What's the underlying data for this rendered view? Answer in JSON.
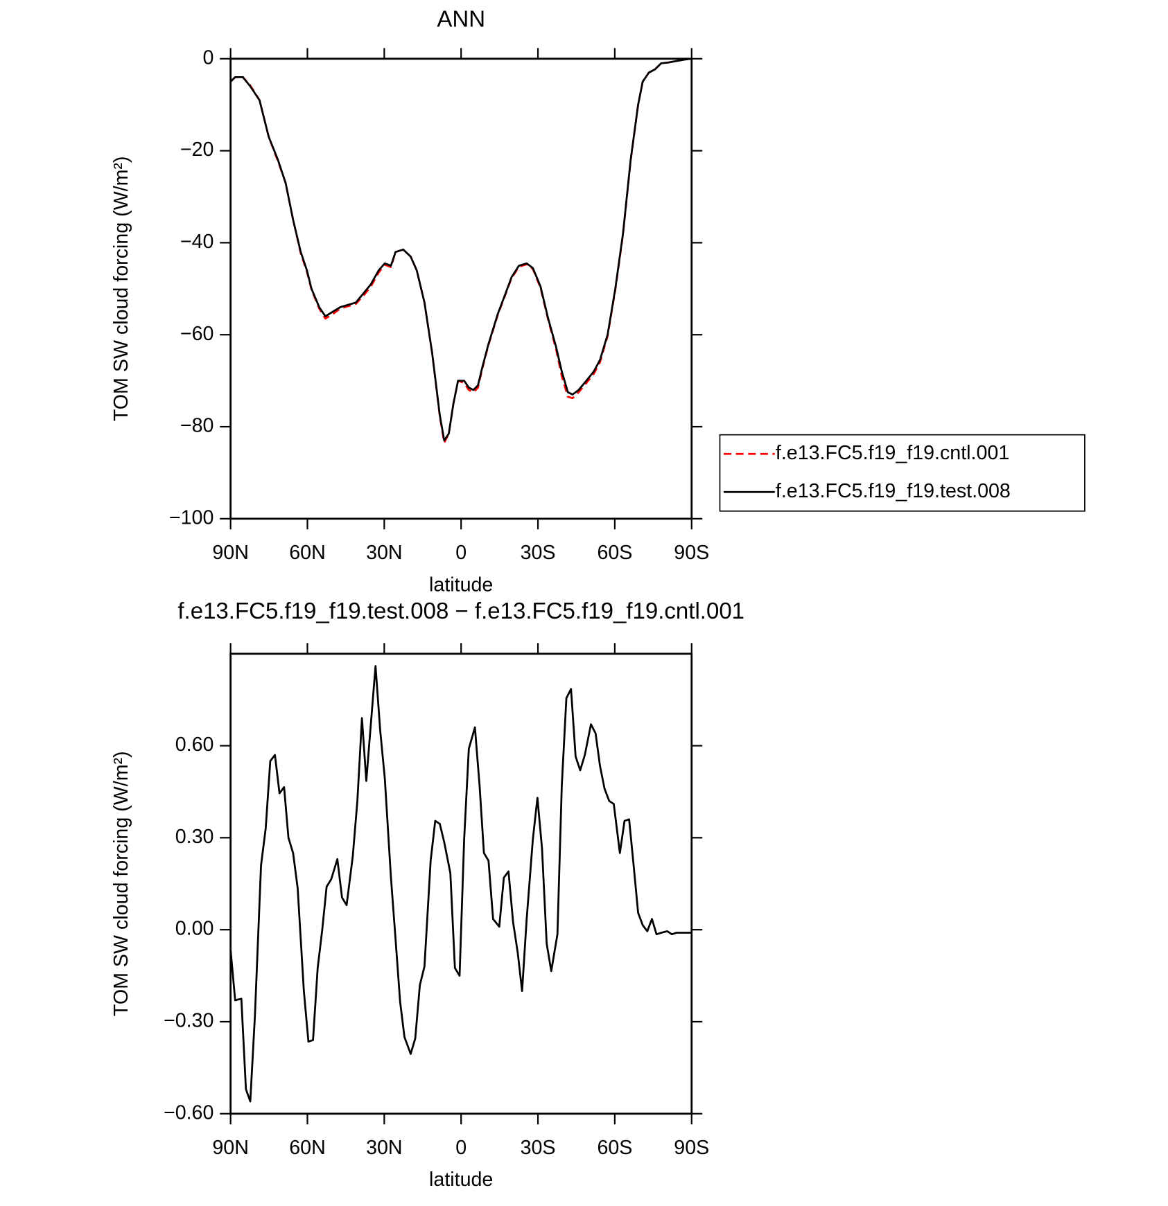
{
  "chart_data": [
    {
      "type": "line",
      "title": "ANN",
      "xlabel": "latitude",
      "ylabel": "TOM SW cloud forcing (W/m²)",
      "xlim": [
        90,
        -90
      ],
      "xticks": [
        {
          "value": 90,
          "label": "90N"
        },
        {
          "value": 60,
          "label": "60N"
        },
        {
          "value": 30,
          "label": "30N"
        },
        0,
        {
          "value": -30,
          "label": "30S"
        },
        {
          "value": -60,
          "label": "60S"
        },
        {
          "value": -90,
          "label": "90S"
        }
      ],
      "ylim": [
        -100,
        0
      ],
      "yticks": [
        0,
        {
          "value": -20,
          "label": "−20"
        },
        {
          "value": -40,
          "label": "−40"
        },
        {
          "value": -60,
          "label": "−60"
        },
        {
          "value": -80,
          "label": "−80"
        },
        {
          "value": -100,
          "label": "−100"
        }
      ],
      "legend": "right",
      "x": [
        90,
        88.2,
        85.2,
        82.3,
        78.7,
        75.1,
        71.5,
        68.5,
        65.6,
        62.6,
        60.2,
        58.4,
        55.4,
        53.0,
        50.1,
        47.1,
        44.1,
        41.1,
        38.1,
        35.2,
        32.2,
        29.8,
        27.4,
        25.6,
        22.6,
        19.7,
        17.3,
        14.3,
        11.3,
        8.3,
        6.6,
        4.8,
        3.0,
        1.2,
        -1.2,
        -3.0,
        -4.8,
        -6.6,
        -8.3,
        -10.7,
        -14.3,
        -16.7,
        -19.7,
        -22.6,
        -25.6,
        -28.0,
        -31.0,
        -34.0,
        -37.0,
        -39.3,
        -41.7,
        -43.5,
        -45.9,
        -48.9,
        -51.8,
        -54.2,
        -57.2,
        -60.2,
        -63.2,
        -66.2,
        -69.1,
        -70.9,
        -73.3,
        -75.7,
        -78.1,
        -81.1,
        -84.0,
        -87.0,
        -90.0
      ],
      "series": [
        {
          "name": "f.e13.FC5.f19_f19.cntl.001",
          "color": "#ff0000",
          "linestyle": "dashed",
          "values": [
            -5,
            -4,
            -4,
            -5.8,
            -9,
            -17,
            -22.3,
            -27,
            -35,
            -42.3,
            -46.3,
            -50.2,
            -54.3,
            -56.5,
            -55.5,
            -54.3,
            -53.8,
            -53.3,
            -51.5,
            -49.5,
            -46.5,
            -44.8,
            -45.3,
            -42,
            -41.5,
            -43,
            -46,
            -53,
            -64,
            -77.8,
            -83.5,
            -81.5,
            -75,
            -70,
            -70.5,
            -72,
            -72.5,
            -71.5,
            -67.3,
            -62.2,
            -55.7,
            -52.2,
            -47.7,
            -45.2,
            -44.7,
            -45.7,
            -49.8,
            -56.8,
            -63,
            -69,
            -73.5,
            -73.8,
            -72.5,
            -70.5,
            -68.5,
            -66,
            -60.3,
            -50.3,
            -38.2,
            -22.2,
            -10,
            -5,
            -3,
            -2.3,
            -1,
            -0.8,
            -0.5,
            -0.2,
            0
          ]
        },
        {
          "name": "f.e13.FC5.f19_f19.test.008",
          "color": "#000000",
          "linestyle": "solid",
          "values": [
            -5,
            -4,
            -4,
            -6,
            -9,
            -17,
            -22,
            -27,
            -35,
            -42,
            -46,
            -50,
            -54,
            -56,
            -55,
            -54,
            -53.5,
            -53,
            -51,
            -49,
            -46,
            -44.5,
            -45,
            -42,
            -41.5,
            -43,
            -46,
            -53,
            -64,
            -77.5,
            -83,
            -81.5,
            -75,
            -70,
            -70,
            -71.5,
            -72,
            -71,
            -67,
            -62,
            -55.5,
            -52,
            -47.5,
            -45,
            -44.5,
            -45.5,
            -49.5,
            -56.5,
            -62.5,
            -68,
            -72.5,
            -73,
            -72,
            -70,
            -68,
            -65.5,
            -60,
            -50,
            -38,
            -22,
            -10,
            -5,
            -3,
            -2.3,
            -1,
            -0.8,
            -0.5,
            -0.2,
            0
          ]
        }
      ]
    },
    {
      "type": "line",
      "title": "f.e13.FC5.f19_f19.test.008 − f.e13.FC5.f19_f19.cntl.001",
      "xlabel": "latitude",
      "ylabel": "TOM SW cloud forcing (W/m²)",
      "xlim": [
        90,
        -90
      ],
      "xticks": [
        {
          "value": 90,
          "label": "90N"
        },
        {
          "value": 60,
          "label": "60N"
        },
        {
          "value": 30,
          "label": "30N"
        },
        0,
        {
          "value": -30,
          "label": "30S"
        },
        {
          "value": -60,
          "label": "60S"
        },
        {
          "value": -90,
          "label": "90S"
        }
      ],
      "ylim": [
        -0.6,
        0.9
      ],
      "yticks": [
        {
          "value": 0.6,
          "label": "0.60"
        },
        {
          "value": 0.3,
          "label": "0.30"
        },
        {
          "value": 0,
          "label": "0.00"
        },
        {
          "value": -0.3,
          "label": "−0.30"
        },
        {
          "value": -0.6,
          "label": "−0.60"
        }
      ],
      "x": [
        90,
        88.2,
        85.8,
        84.0,
        82.3,
        80.5,
        78.1,
        76.3,
        74.5,
        72.7,
        70.9,
        69.1,
        67.4,
        65.6,
        63.8,
        61.4,
        59.6,
        57.8,
        56.0,
        54.2,
        52.5,
        50.7,
        48.3,
        46.5,
        44.7,
        42.3,
        40.5,
        38.7,
        37.0,
        35.2,
        33.4,
        31.6,
        29.8,
        27.4,
        25.6,
        23.8,
        22.1,
        19.7,
        17.9,
        16.1,
        14.3,
        11.9,
        10.1,
        8.3,
        6.6,
        4.2,
        2.4,
        0.6,
        -1.2,
        -3.0,
        -5.4,
        -7.2,
        -8.9,
        -10.7,
        -12.5,
        -14.9,
        -16.7,
        -18.5,
        -20.3,
        -22.1,
        -23.8,
        -25.6,
        -28.0,
        -29.8,
        -31.6,
        -33.4,
        -35.2,
        -37.6,
        -39.3,
        -41.1,
        -42.9,
        -44.7,
        -46.5,
        -48.3,
        -50.7,
        -52.5,
        -54.2,
        -56.0,
        -57.8,
        -59.6,
        -62.0,
        -63.8,
        -65.6,
        -67.4,
        -69.1,
        -70.9,
        -72.7,
        -74.5,
        -76.3,
        -78.1,
        -80.5,
        -82.3,
        -84.0,
        -86.4,
        -88.8,
        -90
      ],
      "series": [
        {
          "color": "#000000",
          "linestyle": "solid",
          "values": [
            -0.065,
            -0.23,
            -0.225,
            -0.52,
            -0.56,
            -0.28,
            0.21,
            0.33,
            0.55,
            0.57,
            0.445,
            0.465,
            0.3,
            0.25,
            0.135,
            -0.2,
            -0.365,
            -0.36,
            -0.125,
            0,
            0.14,
            0.165,
            0.23,
            0.105,
            0.08,
            0.24,
            0.42,
            0.69,
            0.485,
            0.675,
            0.86,
            0.65,
            0.495,
            0.17,
            -0.03,
            -0.235,
            -0.35,
            -0.405,
            -0.355,
            -0.18,
            -0.12,
            0.225,
            0.355,
            0.345,
            0.285,
            0.185,
            -0.125,
            -0.15,
            0.295,
            0.59,
            0.66,
            0.47,
            0.25,
            0.225,
            0.035,
            0.01,
            0.17,
            0.19,
            0.025,
            -0.075,
            -0.2,
            0.035,
            0.295,
            0.43,
            0.265,
            -0.045,
            -0.135,
            -0.015,
            0.47,
            0.755,
            0.785,
            0.565,
            0.52,
            0.57,
            0.67,
            0.64,
            0.535,
            0.46,
            0.42,
            0.41,
            0.25,
            0.355,
            0.36,
            0.205,
            0.055,
            0.015,
            -0.005,
            0.035,
            -0.015,
            -0.01,
            -0.005,
            -0.015,
            -0.01,
            -0.01,
            -0.01,
            -0.01
          ]
        }
      ]
    }
  ]
}
